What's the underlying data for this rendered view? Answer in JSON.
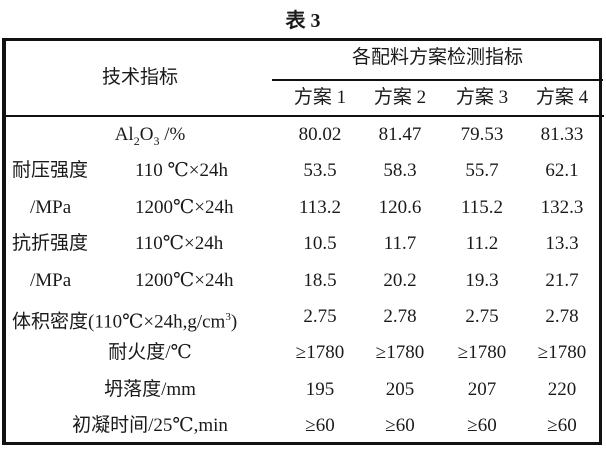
{
  "title": "表 3",
  "header": {
    "indicator": "技术指标",
    "group": "各配料方案检测指标",
    "plans": [
      "方案 1",
      "方案 2",
      "方案 3",
      "方案 4"
    ]
  },
  "rows": [
    {
      "label": "Al",
      "sub": "2",
      "label2": "O",
      "sub2": "3",
      "label3": " /%",
      "values": [
        "80.02",
        "81.47",
        "79.53",
        "81.33"
      ]
    },
    {
      "label": "耐压强度",
      "cond": "110 ℃×24h",
      "values": [
        "53.5",
        "58.3",
        "55.7",
        "62.1"
      ]
    },
    {
      "label": "/MPa",
      "cond": "1200℃×24h",
      "values": [
        "113.2",
        "120.6",
        "115.2",
        "132.3"
      ]
    },
    {
      "label": "抗折强度",
      "cond": "110℃×24h",
      "values": [
        "10.5",
        "11.7",
        "11.2",
        "13.3"
      ]
    },
    {
      "label": "/MPa",
      "cond": "1200℃×24h",
      "values": [
        "18.5",
        "20.2",
        "19.3",
        "21.7"
      ]
    },
    {
      "label": "体积密度(110℃×24h,g/cm",
      "sup": "3",
      "label3": ")",
      "values": [
        "2.75",
        "2.78",
        "2.75",
        "2.78"
      ]
    },
    {
      "label": "耐火度/℃",
      "values": [
        "≥1780",
        "≥1780",
        "≥1780",
        "≥1780"
      ]
    },
    {
      "label": "坍落度/mm",
      "values": [
        "195",
        "205",
        "207",
        "220"
      ]
    },
    {
      "label": "初凝时间/25℃,min",
      "values": [
        "≥60",
        "≥60",
        "≥60",
        "≥60"
      ]
    }
  ]
}
